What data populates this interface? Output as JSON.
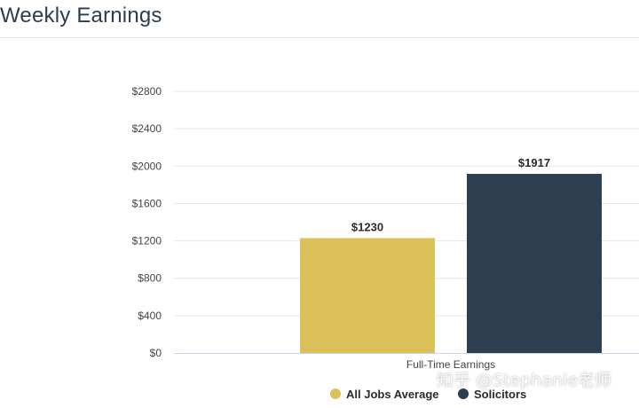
{
  "page": {
    "title": "Weekly Earnings"
  },
  "watermark": "知乎 @Stephanie老师",
  "chart_data": {
    "type": "bar",
    "title": "Weekly Earnings",
    "categories": [
      "Full-Time Earnings"
    ],
    "series": [
      {
        "name": "All Jobs Average",
        "values": [
          1230
        ],
        "color": "#dcc05a",
        "label": "$1230"
      },
      {
        "name": "Solicitors",
        "values": [
          1917
        ],
        "color": "#2c3e4f",
        "label": "$1917"
      }
    ],
    "ylim": [
      0,
      2800
    ],
    "yticks": [
      0,
      400,
      800,
      1200,
      1600,
      2000,
      2400,
      2800
    ],
    "ytick_labels": [
      "$0",
      "$400",
      "$800",
      "$1200",
      "$1600",
      "$2000",
      "$2400",
      "$2800"
    ],
    "grid": true,
    "legend": "bottom-center",
    "xlabel": "",
    "ylabel": ""
  }
}
